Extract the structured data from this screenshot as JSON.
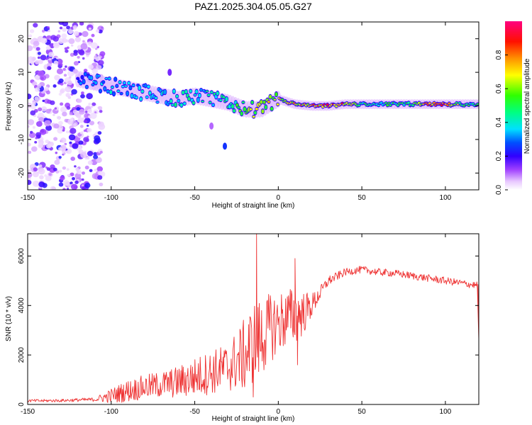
{
  "figure_title": "PAZ1.2025.304.05.05.G27",
  "chart_data": [
    {
      "type": "heatmap",
      "title": "",
      "xlabel": "Height of straight line (km)",
      "ylabel": "Frequency (Hz)",
      "xlim": [
        -150,
        120
      ],
      "ylim": [
        -25,
        25
      ],
      "xticks": [
        -150,
        -100,
        -50,
        0,
        50,
        100
      ],
      "yticks": [
        20,
        10,
        0,
        -10,
        -20
      ],
      "colorbar": {
        "label": "Normalized spectral amplitude",
        "range": [
          0,
          1
        ],
        "ticks": [
          0.0,
          0.2,
          0.4,
          0.6,
          0.8
        ],
        "colormap": [
          "#ffffff",
          "#d8b4ff",
          "#7a00ff",
          "#0000ff",
          "#00ffff",
          "#00ff00",
          "#ffff00",
          "#ff8000",
          "#ff0000",
          "#ff0080"
        ]
      },
      "ridge": {
        "x": [
          -120,
          -110,
          -100,
          -90,
          -80,
          -70,
          -60,
          -50,
          -40,
          -30,
          -20,
          -10,
          0,
          10,
          20,
          30,
          40,
          50,
          60,
          70,
          80,
          90,
          100,
          110,
          120
        ],
        "frequency": [
          8,
          7,
          6,
          5,
          4,
          3,
          2,
          3,
          2,
          1,
          -1,
          -1,
          2,
          0.5,
          0,
          0,
          0.5,
          0.5,
          0.5,
          0.5,
          0.5,
          0.5,
          0.5,
          0.5,
          0.5
        ],
        "amplitude": [
          0.3,
          0.35,
          0.4,
          0.35,
          0.4,
          0.45,
          0.45,
          0.45,
          0.45,
          0.5,
          0.6,
          0.7,
          0.75,
          0.8,
          0.85,
          0.9,
          0.85,
          0.5,
          0.5,
          0.55,
          0.6,
          0.85,
          0.95,
          0.6,
          0.5
        ]
      },
      "scatter_noise_x_range": [
        -150,
        -105
      ],
      "isolated_blobs": [
        {
          "x": -32,
          "frequency": -12,
          "amplitude": 0.25
        },
        {
          "x": -65,
          "frequency": 10,
          "amplitude": 0.15
        },
        {
          "x": -40,
          "frequency": -6,
          "amplitude": 0.1
        }
      ]
    },
    {
      "type": "line",
      "title": "",
      "xlabel": "Height of straight line (km)",
      "ylabel": "SNR (10 * v/v)",
      "xlim": [
        -150,
        120
      ],
      "ylim": [
        0,
        6900
      ],
      "xticks": [
        -150,
        -100,
        -50,
        0,
        50,
        100
      ],
      "yticks": [
        0,
        2000,
        4000,
        6000
      ],
      "series": [
        {
          "name": "SNR",
          "color": "#ee3333",
          "x": [
            -150,
            -140,
            -130,
            -120,
            -110,
            -100,
            -90,
            -80,
            -70,
            -60,
            -50,
            -40,
            -30,
            -20,
            -15,
            -10,
            -5,
            0,
            5,
            10,
            15,
            20,
            25,
            30,
            40,
            50,
            60,
            70,
            80,
            90,
            100,
            110,
            120
          ],
          "y": [
            150,
            150,
            160,
            180,
            200,
            350,
            550,
            700,
            800,
            900,
            1100,
            1300,
            1500,
            2000,
            2400,
            2700,
            3100,
            3300,
            3500,
            3600,
            3700,
            4000,
            4500,
            5000,
            5350,
            5450,
            5350,
            5300,
            5200,
            5100,
            5000,
            4900,
            4800
          ],
          "noise_amplitude": [
            60,
            60,
            60,
            70,
            80,
            300,
            450,
            500,
            550,
            650,
            800,
            900,
            1000,
            1500,
            1800,
            1600,
            1400,
            1300,
            1200,
            1200,
            900,
            500,
            300,
            200,
            150,
            150,
            150,
            150,
            150,
            150,
            150,
            150,
            150
          ],
          "spikes": [
            {
              "x": -13,
              "y": 6900
            },
            {
              "x": -11.5,
              "y": 3400
            },
            {
              "x": -15,
              "y": 300
            },
            {
              "x": 10,
              "y": 5900
            },
            {
              "x": 11.5,
              "y": 1600
            },
            {
              "x": 120,
              "y": 2600
            }
          ]
        }
      ]
    }
  ]
}
